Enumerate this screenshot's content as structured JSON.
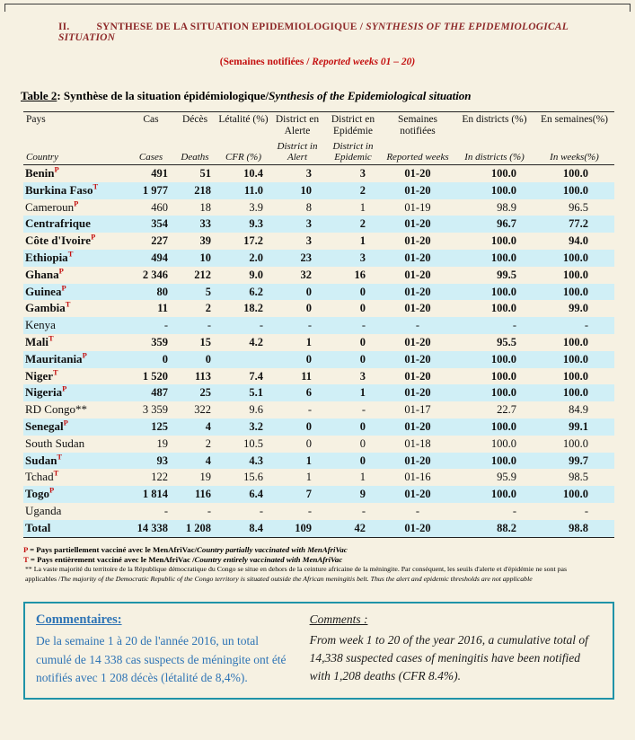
{
  "header": {
    "section_no": "II.",
    "title_fr": "SYNTHESE DE LA SITUATION EPIDEMIOLOGIQUE /",
    "title_en": "SYNTHESIS OF THE EPIDEMIOLOGICAL SITUATION",
    "subtitle_fr": "(Semaines notifiées /",
    "subtitle_en": "Reported weeks 01 – 20)"
  },
  "caption": {
    "label": "Table 2",
    "fr": ": Synthèse de la situation épidémiologique/",
    "en": "Synthesis of the Epidemiological situation"
  },
  "table": {
    "headers": [
      {
        "fr": "Pays",
        "en": "Country"
      },
      {
        "fr": "Cas",
        "en": "Cases"
      },
      {
        "fr": "Décès",
        "en": "Deaths"
      },
      {
        "fr": "Létalité (%)",
        "en": "CFR (%)"
      },
      {
        "fr": "District en Alerte",
        "en": "District in Alert"
      },
      {
        "fr": "District en Epidémie",
        "en": "District in Epidemic"
      },
      {
        "fr": "Semaines notifiées",
        "en": "Reported weeks"
      },
      {
        "fr": "En districts (%)",
        "en": "In districts (%)"
      },
      {
        "fr": "En semaines(%)",
        "en": "In weeks(%)"
      }
    ],
    "rows": [
      {
        "name": "Benin",
        "marker": "P",
        "marker_sup": true,
        "bold": true,
        "values": [
          "491",
          "51",
          "10.4",
          "3",
          "3",
          "01-20",
          "100.0",
          "100.0"
        ]
      },
      {
        "name": "Burkina Faso",
        "marker": "T",
        "marker_sup": true,
        "bold": true,
        "values": [
          "1 977",
          "218",
          "11.0",
          "10",
          "2",
          "01-20",
          "100.0",
          "100.0"
        ]
      },
      {
        "name": "Cameroun",
        "marker": "P",
        "marker_sup": true,
        "bold": false,
        "values": [
          "460",
          "18",
          "3.9",
          "8",
          "1",
          "01-19",
          "98.9",
          "96.5"
        ]
      },
      {
        "name": "Centrafrique",
        "marker": "",
        "marker_sup": false,
        "bold": true,
        "values": [
          "354",
          "33",
          "9.3",
          "3",
          "2",
          "01-20",
          "96.7",
          "77.2"
        ]
      },
      {
        "name": "Côte d'Ivoire",
        "marker": "P",
        "marker_sup": true,
        "bold": true,
        "values": [
          "227",
          "39",
          "17.2",
          "3",
          "1",
          "01-20",
          "100.0",
          "94.0"
        ]
      },
      {
        "name": "Ethiopia",
        "marker": "T",
        "marker_sup": true,
        "bold": true,
        "values": [
          "494",
          "10",
          "2.0",
          "23",
          "3",
          "01-20",
          "100.0",
          "100.0"
        ]
      },
      {
        "name": "Ghana",
        "marker": "P",
        "marker_sup": true,
        "bold": true,
        "values": [
          "2 346",
          "212",
          "9.0",
          "32",
          "16",
          "01-20",
          "99.5",
          "100.0"
        ]
      },
      {
        "name": "Guinea",
        "marker": "P",
        "marker_sup": true,
        "bold": true,
        "values": [
          "80",
          "5",
          "6.2",
          "0",
          "0",
          "01-20",
          "100.0",
          "100.0"
        ]
      },
      {
        "name": "Gambia",
        "marker": "T",
        "marker_sup": true,
        "bold": true,
        "values": [
          "11",
          "2",
          "18.2",
          "0",
          "0",
          "01-20",
          "100.0",
          "99.0"
        ]
      },
      {
        "name": "Kenya",
        "marker": "",
        "marker_sup": false,
        "bold": false,
        "values": [
          "-",
          "-",
          "-",
          "-",
          "-",
          "-",
          "-",
          "-"
        ]
      },
      {
        "name": "Mali",
        "marker": "T",
        "marker_sup": true,
        "bold": true,
        "values": [
          "359",
          "15",
          "4.2",
          "1",
          "0",
          "01-20",
          "95.5",
          "100.0"
        ]
      },
      {
        "name": "Mauritania",
        "marker": "P",
        "marker_sup": true,
        "bold": true,
        "values": [
          "0",
          "0",
          "",
          "0",
          "0",
          "01-20",
          "100.0",
          "100.0"
        ]
      },
      {
        "name": "Niger",
        "marker": "T",
        "marker_sup": true,
        "bold": true,
        "values": [
          "1 520",
          "113",
          "7.4",
          "11",
          "3",
          "01-20",
          "100.0",
          "100.0"
        ]
      },
      {
        "name": "Nigeria",
        "marker": "P",
        "marker_sup": true,
        "bold": true,
        "values": [
          "487",
          "25",
          "5.1",
          "6",
          "1",
          "01-20",
          "100.0",
          "100.0"
        ]
      },
      {
        "name": "RD Congo",
        "marker": "**",
        "marker_sup": false,
        "bold": false,
        "values": [
          "3 359",
          "322",
          "9.6",
          "-",
          "-",
          "01-17",
          "22.7",
          "84.9"
        ]
      },
      {
        "name": "Senegal",
        "marker": "P",
        "marker_sup": true,
        "bold": true,
        "values": [
          "125",
          "4",
          "3.2",
          "0",
          "0",
          "01-20",
          "100.0",
          "99.1"
        ]
      },
      {
        "name": "South Sudan",
        "marker": "",
        "marker_sup": false,
        "bold": false,
        "values": [
          "19",
          "2",
          "10.5",
          "0",
          "0",
          "01-18",
          "100.0",
          "100.0"
        ]
      },
      {
        "name": "Sudan",
        "marker": "T",
        "marker_sup": true,
        "bold": true,
        "values": [
          "93",
          "4",
          "4.3",
          "1",
          "0",
          "01-20",
          "100.0",
          "99.7"
        ]
      },
      {
        "name": "Tchad",
        "marker": "T",
        "marker_sup": true,
        "bold": false,
        "values": [
          "122",
          "19",
          "15.6",
          "1",
          "1",
          "01-16",
          "95.9",
          "98.5"
        ]
      },
      {
        "name": "Togo",
        "marker": "P",
        "marker_sup": true,
        "bold": true,
        "values": [
          "1 814",
          "116",
          "6.4",
          "7",
          "9",
          "01-20",
          "100.0",
          "100.0"
        ]
      },
      {
        "name": "Uganda",
        "marker": "",
        "marker_sup": false,
        "bold": false,
        "values": [
          "-",
          "-",
          "-",
          "-",
          "-",
          "-",
          "-",
          "-"
        ]
      },
      {
        "name": "Total",
        "marker": "",
        "marker_sup": false,
        "bold": true,
        "total": true,
        "values": [
          "14 338",
          "1 208",
          "8.4",
          "109",
          "42",
          "01-20",
          "88.2",
          "98.8"
        ]
      }
    ]
  },
  "footnotes": [
    {
      "marker": "P",
      "red": true,
      "small": false,
      "fr": "= Pays partiellement vacciné avec le MenAfriVac/",
      "en": "Country partially  vaccinated with MenAfriVac"
    },
    {
      "marker": "T",
      "red": true,
      "small": false,
      "fr": "= Pays entièrement vacciné avec le MenAfriVac /",
      "en": "Country entirely  vaccinated with MenAfriVac"
    },
    {
      "marker": "**",
      "red": false,
      "small": true,
      "fr": "La vaste majorité du territoire de la République démocratique du Congo se situe en dehors de la ceinture africaine de la méningite. Par conséquent, les seuils d'alerte et d'épidémie ne sont pas applicables /",
      "en": "The majority of the Democratic Republic of the Congo territory is situated outside the African meningitis belt. Thus the alert and epidemic thresholds are not applicable"
    }
  ],
  "comments": {
    "fr_title": "Commentaires:",
    "fr_body": "De la semaine 1 à 20 de l'année 2016, un total cumulé de 14 338 cas suspects de méningite ont été notifiés avec 1 208 décès (létalité de 8,4%).",
    "en_title": "Comments :",
    "en_body": "From week 1 to 20 of the year 2016, a cumulative total of 14,338 suspected cases of meningitis have been notified with 1,208 deaths (CFR 8.4%)."
  },
  "colors": {
    "page_background": "#f6f1e2",
    "title_maroon": "#8e2a2a",
    "accent_red": "#c41111",
    "row_stripe_cyan": "#d0eff6",
    "comment_blue": "#2e74b5",
    "comment_box_teal": "#1f93a8"
  }
}
